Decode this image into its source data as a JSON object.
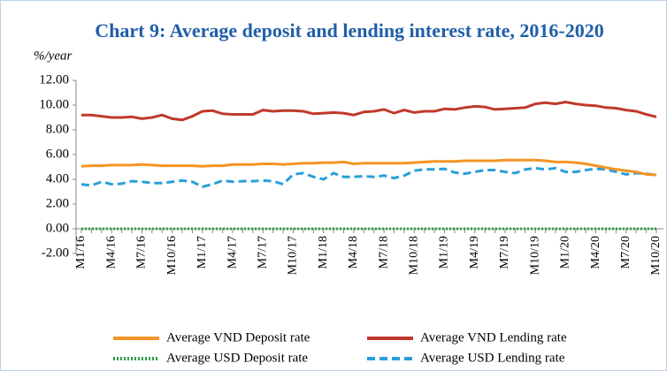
{
  "chart_data": {
    "type": "line",
    "title": "Chart 9: Average deposit and lending interest rate, 2016-2020",
    "y_axis_label": "%/year",
    "categories": [
      "M1/16",
      null,
      null,
      "M4/16",
      null,
      null,
      "M7/16",
      null,
      null,
      "M10/16",
      null,
      null,
      "M1/17",
      null,
      null,
      "M4/17",
      null,
      null,
      "M7/17",
      null,
      null,
      "M10/17",
      null,
      null,
      "M1/18",
      null,
      null,
      "M4/18",
      null,
      null,
      "M7/18",
      null,
      null,
      "M10/18",
      null,
      null,
      "M1/19",
      null,
      null,
      "M4/19",
      null,
      null,
      "M7/19",
      null,
      null,
      "M10/19",
      null,
      null,
      "M1/20",
      null,
      null,
      "M4/20",
      null,
      null,
      "M7/20",
      null,
      null,
      "M10/20"
    ],
    "series": [
      {
        "name": "Average VND Deposit rate",
        "color": "#f39425",
        "style": "solid",
        "values": [
          5.05,
          5.1,
          5.1,
          5.15,
          5.15,
          5.15,
          5.2,
          5.15,
          5.1,
          5.1,
          5.1,
          5.1,
          5.05,
          5.1,
          5.1,
          5.2,
          5.2,
          5.2,
          5.25,
          5.25,
          5.2,
          5.25,
          5.3,
          5.3,
          5.35,
          5.35,
          5.4,
          5.25,
          5.3,
          5.3,
          5.3,
          5.3,
          5.3,
          5.35,
          5.4,
          5.45,
          5.45,
          5.45,
          5.5,
          5.5,
          5.5,
          5.5,
          5.55,
          5.55,
          5.55,
          5.55,
          5.5,
          5.4,
          5.4,
          5.35,
          5.25,
          5.1,
          4.95,
          4.8,
          4.7,
          4.6,
          4.4,
          4.35
        ]
      },
      {
        "name": "Average VND Lending rate",
        "color": "#c0392b",
        "style": "solid",
        "values": [
          9.2,
          9.2,
          9.1,
          9.0,
          9.0,
          9.05,
          8.9,
          9.0,
          9.2,
          8.9,
          8.8,
          9.1,
          9.5,
          9.55,
          9.3,
          9.25,
          9.25,
          9.25,
          9.6,
          9.5,
          9.55,
          9.55,
          9.5,
          9.3,
          9.35,
          9.4,
          9.35,
          9.2,
          9.45,
          9.5,
          9.65,
          9.35,
          9.6,
          9.4,
          9.5,
          9.5,
          9.7,
          9.65,
          9.8,
          9.9,
          9.85,
          9.65,
          9.7,
          9.75,
          9.8,
          10.1,
          10.2,
          10.1,
          10.25,
          10.1,
          10.0,
          9.95,
          9.8,
          9.75,
          9.6,
          9.5,
          9.25,
          9.05
        ]
      },
      {
        "name": "Average USD Deposit rate",
        "color": "#2ea043",
        "style": "dotted",
        "values": [
          0,
          0,
          0,
          0,
          0,
          0,
          0,
          0,
          0,
          0,
          0,
          0,
          0,
          0,
          0,
          0,
          0,
          0,
          0,
          0,
          0,
          0,
          0,
          0,
          0,
          0,
          0,
          0,
          0,
          0,
          0,
          0,
          0,
          0,
          0,
          0,
          0,
          0,
          0,
          0,
          0,
          0,
          0,
          0,
          0,
          0,
          0,
          0,
          0,
          0,
          0,
          0,
          0,
          0,
          0,
          0,
          0,
          0
        ]
      },
      {
        "name": "Average USD Lending rate",
        "color": "#2a9fd8",
        "style": "dashed",
        "values": [
          3.6,
          3.5,
          3.8,
          3.6,
          3.65,
          3.85,
          3.8,
          3.7,
          3.7,
          3.8,
          3.9,
          3.8,
          3.4,
          3.6,
          3.9,
          3.8,
          3.85,
          3.85,
          3.9,
          3.85,
          3.6,
          4.4,
          4.5,
          4.2,
          4.0,
          4.5,
          4.2,
          4.2,
          4.25,
          4.2,
          4.3,
          4.1,
          4.3,
          4.7,
          4.8,
          4.8,
          4.85,
          4.55,
          4.45,
          4.6,
          4.75,
          4.75,
          4.6,
          4.5,
          4.8,
          4.9,
          4.8,
          4.9,
          4.6,
          4.6,
          4.75,
          4.85,
          4.8,
          4.6,
          4.4,
          4.5,
          4.45,
          4.35
        ]
      }
    ],
    "ylim": [
      -2,
      12
    ],
    "yticks": [
      {
        "value": -2,
        "label": "-2.00"
      },
      {
        "value": 0,
        "label": "0.00"
      },
      {
        "value": 2,
        "label": "2.00"
      },
      {
        "value": 4,
        "label": "4.00"
      },
      {
        "value": 6,
        "label": "6.00"
      },
      {
        "value": 8,
        "label": "8.00"
      },
      {
        "value": 10,
        "label": "10.00"
      },
      {
        "value": 12,
        "label": "12.00"
      }
    ],
    "grid": false
  }
}
